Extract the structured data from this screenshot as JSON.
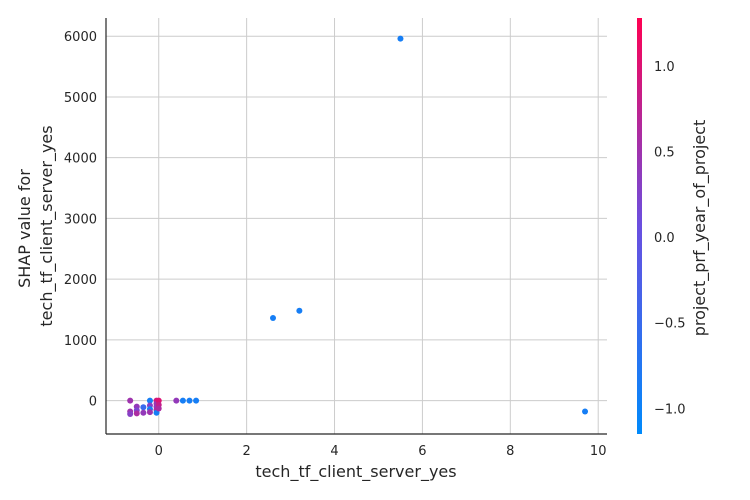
{
  "chart_data": {
    "type": "scatter",
    "title": "",
    "xlabel": "tech_tf_client_server_yes",
    "ylabel_lines": [
      "SHAP value for",
      "tech_tf_client_server_yes"
    ],
    "xlim": [
      -1.2,
      10.2
    ],
    "ylim": [
      -550,
      6300
    ],
    "xticks": [
      0,
      2,
      4,
      6,
      8,
      10
    ],
    "yticks": [
      0,
      1000,
      2000,
      3000,
      4000,
      5000,
      6000
    ],
    "grid": true,
    "colorbar": {
      "label": "project_prf_year_of_project",
      "range": [
        -1.15,
        1.28
      ],
      "ticks": [
        -1.0,
        -0.5,
        0.0,
        0.5,
        1.0
      ],
      "tick_labels": [
        "−1.0",
        "−0.5",
        "0.0",
        "0.5",
        "1.0"
      ],
      "colormap": [
        "#008afb",
        "#6a4fe0",
        "#ff0052"
      ]
    },
    "points": [
      {
        "x": 5.5,
        "y": 5960,
        "c": -0.9
      },
      {
        "x": 3.2,
        "y": 1480,
        "c": -0.9
      },
      {
        "x": 2.6,
        "y": 1360,
        "c": -0.9
      },
      {
        "x": 9.7,
        "y": -180,
        "c": -0.9
      },
      {
        "x": -0.65,
        "y": 0,
        "c": 0.5
      },
      {
        "x": -0.65,
        "y": -180,
        "c": 0.5
      },
      {
        "x": -0.65,
        "y": -220,
        "c": 0.3
      },
      {
        "x": -0.5,
        "y": -100,
        "c": 0.4
      },
      {
        "x": -0.5,
        "y": -160,
        "c": 0.2
      },
      {
        "x": -0.5,
        "y": -210,
        "c": 0.6
      },
      {
        "x": -0.35,
        "y": -110,
        "c": -0.5
      },
      {
        "x": -0.35,
        "y": -200,
        "c": 0.4
      },
      {
        "x": -0.2,
        "y": 0,
        "c": -0.9
      },
      {
        "x": -0.2,
        "y": -80,
        "c": 0.3
      },
      {
        "x": -0.2,
        "y": -140,
        "c": -0.9
      },
      {
        "x": -0.2,
        "y": -190,
        "c": 0.5
      },
      {
        "x": -0.05,
        "y": 0,
        "c": 0.9
      },
      {
        "x": -0.05,
        "y": -50,
        "c": 0.5
      },
      {
        "x": -0.05,
        "y": -100,
        "c": 0.4
      },
      {
        "x": -0.05,
        "y": -150,
        "c": 0.6
      },
      {
        "x": -0.05,
        "y": -200,
        "c": -0.9
      },
      {
        "x": 0.0,
        "y": 0,
        "c": 1.0
      },
      {
        "x": 0.0,
        "y": -70,
        "c": 0.8
      },
      {
        "x": 0.0,
        "y": -130,
        "c": 0.6
      },
      {
        "x": 0.4,
        "y": 0,
        "c": 0.4
      },
      {
        "x": 0.55,
        "y": 0,
        "c": -0.9
      },
      {
        "x": 0.7,
        "y": 0,
        "c": -0.9
      },
      {
        "x": 0.85,
        "y": 0,
        "c": -0.9
      }
    ]
  }
}
